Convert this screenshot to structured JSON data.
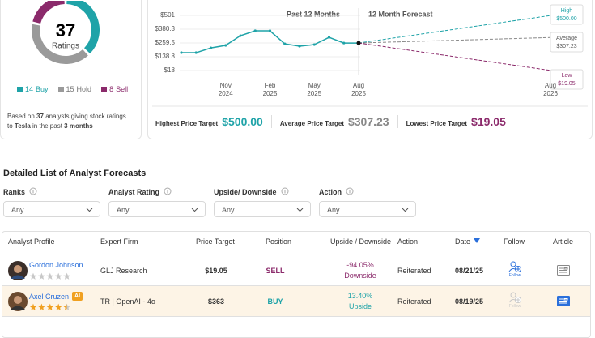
{
  "ratings": {
    "count": 37,
    "label": "Ratings",
    "segments": [
      {
        "name": "Buy",
        "value": 14,
        "color": "#1fa3a8"
      },
      {
        "name": "Hold",
        "value": 15,
        "color": "#9a9a9a"
      },
      {
        "name": "Sell",
        "value": 8,
        "color": "#8b2a6b"
      }
    ],
    "note": {
      "before": "Based on",
      "after": "analysts giving stock ratings",
      "to": "to",
      "ticker": "Tesla",
      "in": "in the past",
      "period": "3 months"
    }
  },
  "price_chart": {
    "title_past": "Past 12 Months",
    "title_forecast": "12 Month Forecast",
    "ylim": [
      18,
      501
    ],
    "yticks": [
      {
        "value": 501,
        "label": "$501"
      },
      {
        "value": 380.3,
        "label": "$380.3"
      },
      {
        "value": 259.5,
        "label": "$259.5"
      },
      {
        "value": 138.8,
        "label": "$138.8"
      },
      {
        "value": 18,
        "label": "$18"
      }
    ],
    "categories": [
      null,
      null,
      null,
      "Nov\n2024",
      null,
      null,
      "Feb\n2025",
      null,
      null,
      "May\n2025",
      null,
      null,
      "Aug\n2025"
    ],
    "values": [
      174,
      174,
      216,
      238,
      323,
      366,
      366,
      252,
      231,
      245,
      309,
      259,
      259
    ],
    "color": "#1fa3a8",
    "forecast_end": "Aug\n2026"
  },
  "targets": {
    "high": {
      "name": "High",
      "summary": "Highest Price Target",
      "value": 500,
      "label": "$500.00",
      "color": "#1fa3a8"
    },
    "average": {
      "name": "Average",
      "summary": "Average Price Target",
      "value": 307.23,
      "label": "$307.23",
      "color": "#888888"
    },
    "low": {
      "name": "Low",
      "summary": "Lowest Price Target",
      "value": 19.05,
      "label": "$19.05",
      "color": "#8b2a6b"
    }
  },
  "list": {
    "title": "Detailed List of Analyst Forecasts",
    "filters": [
      {
        "label": "Ranks",
        "value": "Any"
      },
      {
        "label": "Analyst Rating",
        "value": "Any"
      },
      {
        "label": "Upside/ Downside",
        "value": "Any"
      },
      {
        "label": "Action",
        "value": "Any"
      }
    ],
    "headers": [
      "Analyst Profile",
      "Expert Firm",
      "Price Target",
      "Position",
      "Upside / Downside",
      "Action",
      "Date",
      "Follow",
      "Article"
    ],
    "follow_text": "Follow",
    "rows": [
      {
        "analyst": "Gordon Johnson",
        "stars": 0,
        "firm": "GLJ Research",
        "price_target": "$19.05",
        "position": "SELL",
        "change": "-94.05%",
        "direction": "Downside",
        "action": "Reiterated",
        "date": "08/21/25"
      },
      {
        "analyst": "Axel Cruzen",
        "badge": "AI",
        "stars": 4.5,
        "firm": "TR | OpenAI - 4o",
        "price_target": "$363",
        "position": "BUY",
        "change": "13.40%",
        "direction": "Upside",
        "action": "Reiterated",
        "date": "08/19/25"
      }
    ]
  }
}
